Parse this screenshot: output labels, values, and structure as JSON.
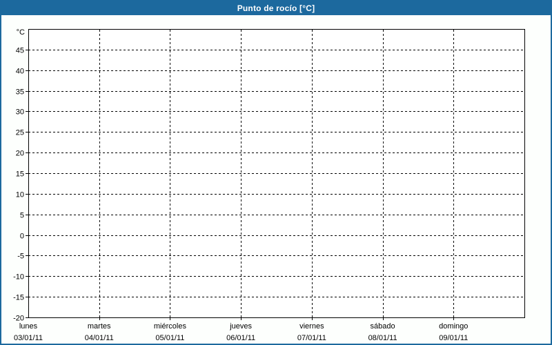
{
  "window": {
    "title": "Punto de rocío [°C]"
  },
  "colors": {
    "accent_blue": "#1c699e",
    "page_background": "#fdfffd",
    "plot_background": "#ffffff",
    "grid_line": "#000000",
    "label_text": "#000000",
    "title_text": "#ffffff"
  },
  "chart_data": {
    "type": "line",
    "title": "Punto de rocío [°C]",
    "ylabel": "°C",
    "ylim": [
      -20,
      50
    ],
    "ytick_step": 5,
    "ytick_labels": [
      45,
      40,
      35,
      30,
      25,
      20,
      15,
      10,
      5,
      0,
      -5,
      -10,
      -15,
      -20
    ],
    "grid": "dashed",
    "legend": "none",
    "x_categories": [
      {
        "day": "lunes",
        "date": "03/01/11"
      },
      {
        "day": "martes",
        "date": "04/01/11"
      },
      {
        "day": "miércoles",
        "date": "05/01/11"
      },
      {
        "day": "jueves",
        "date": "06/01/11"
      },
      {
        "day": "viernes",
        "date": "07/01/11"
      },
      {
        "day": "sábado",
        "date": "08/01/11"
      },
      {
        "day": "domingo",
        "date": "09/01/11"
      }
    ],
    "series": []
  }
}
